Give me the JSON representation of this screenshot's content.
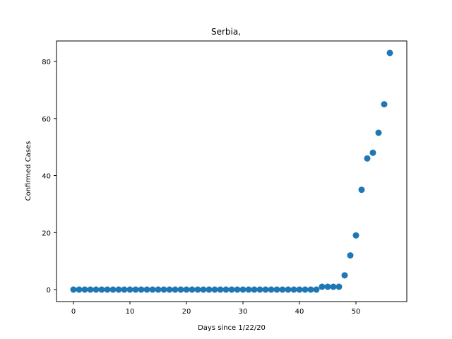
{
  "chart_data": {
    "type": "scatter",
    "title": "Serbia,",
    "xlabel": "Days since 1/22/20",
    "ylabel": "Confirmed Cases",
    "xlim": [
      -3,
      59
    ],
    "ylim": [
      -4.2,
      87.2
    ],
    "xticks": [
      0,
      10,
      20,
      30,
      40,
      50
    ],
    "yticks": [
      0,
      20,
      40,
      60,
      80
    ],
    "grid": false,
    "marker_color": "#1f77b4",
    "series": [
      {
        "x": [
          0,
          1,
          2,
          3,
          4,
          5,
          6,
          7,
          8,
          9,
          10,
          11,
          12,
          13,
          14,
          15,
          16,
          17,
          18,
          19,
          20,
          21,
          22,
          23,
          24,
          25,
          26,
          27,
          28,
          29,
          30,
          31,
          32,
          33,
          34,
          35,
          36,
          37,
          38,
          39,
          40,
          41,
          42,
          43,
          44,
          45,
          46,
          47,
          48,
          49,
          50,
          51,
          52,
          53,
          54,
          55,
          56
        ],
        "y": [
          0,
          0,
          0,
          0,
          0,
          0,
          0,
          0,
          0,
          0,
          0,
          0,
          0,
          0,
          0,
          0,
          0,
          0,
          0,
          0,
          0,
          0,
          0,
          0,
          0,
          0,
          0,
          0,
          0,
          0,
          0,
          0,
          0,
          0,
          0,
          0,
          0,
          0,
          0,
          0,
          0,
          0,
          0,
          0,
          1,
          1,
          1,
          1,
          5,
          12,
          19,
          35,
          46,
          48,
          55,
          65,
          83
        ]
      }
    ]
  }
}
